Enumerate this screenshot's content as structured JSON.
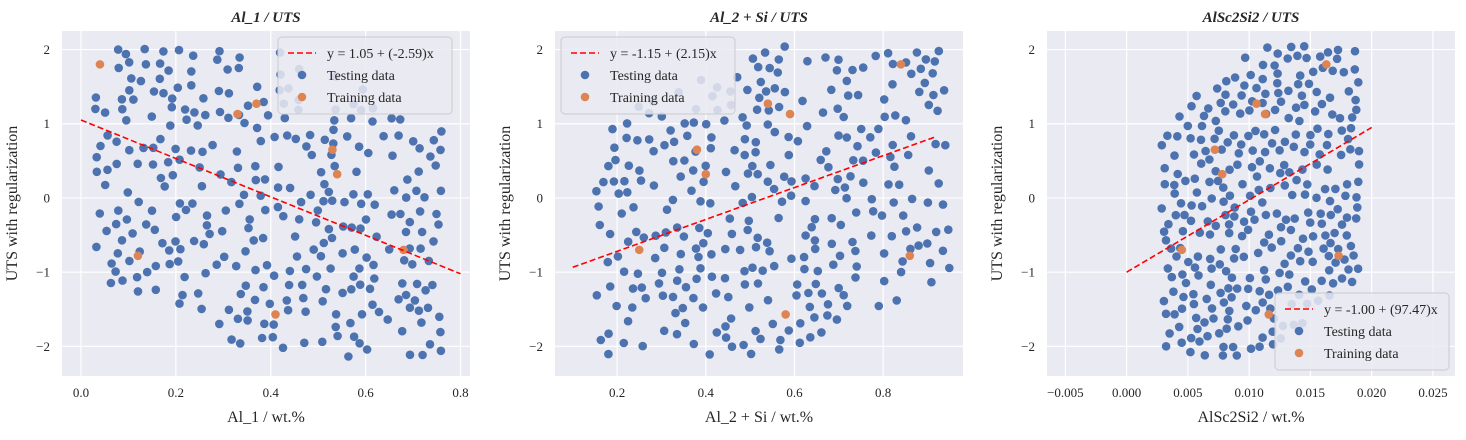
{
  "chart_data": [
    {
      "type": "scatter",
      "title": "Al_1 / UTS",
      "xlabel": "Al_1 / wt.%",
      "ylabel": "UTS with regularization",
      "xlim": [
        -0.04,
        0.82
      ],
      "ylim": [
        -2.4,
        2.25
      ],
      "xticks": [
        "0.0",
        "0.2",
        "0.4",
        "0.6",
        "0.8"
      ],
      "xtick_values": [
        0.0,
        0.2,
        0.4,
        0.6,
        0.8
      ],
      "yticks": [
        "−2",
        "−1",
        "0",
        "1",
        "2"
      ],
      "ytick_values": [
        -2,
        -1,
        0,
        1,
        2
      ],
      "grid": true,
      "legend_position": "top-right",
      "colors": {
        "testing": "#4c72b0",
        "training": "#dd8452",
        "fit": "#ff0000",
        "background": "#eaeaf2"
      },
      "fit_line": {
        "label": "y = 1.05 + (-2.59)x",
        "intercept": 1.05,
        "slope": -2.59,
        "x_range": [
          0.0,
          0.8
        ]
      },
      "series": [
        {
          "name": "Testing data",
          "x_range": [
            0.03,
            0.76
          ],
          "y_range": [
            -2.15,
            2.05
          ],
          "trend": -1.9,
          "approximate_count": 320
        },
        {
          "name": "Training data",
          "x": [
            0.04,
            0.12,
            0.33,
            0.37,
            0.41,
            0.53,
            0.54,
            0.68
          ],
          "y": [
            1.8,
            -0.78,
            1.13,
            1.27,
            -1.57,
            0.65,
            0.32,
            -0.7
          ]
        }
      ],
      "legend": [
        "y = 1.05 + (-2.59)x",
        "Testing data",
        "Training data"
      ]
    },
    {
      "type": "scatter",
      "title": "Al_2 + Si / UTS",
      "xlabel": "Al_2 + Si / wt.%",
      "ylabel": "UTS with regularization",
      "xlim": [
        0.06,
        0.98
      ],
      "ylim": [
        -2.4,
        2.25
      ],
      "xticks": [
        "0.2",
        "0.4",
        "0.6",
        "0.8"
      ],
      "xtick_values": [
        0.2,
        0.4,
        0.6,
        0.8
      ],
      "yticks": [
        "−2",
        "−1",
        "0",
        "1",
        "2"
      ],
      "ytick_values": [
        -2,
        -1,
        0,
        1,
        2
      ],
      "grid": true,
      "legend_position": "top-left",
      "colors": {
        "testing": "#4c72b0",
        "training": "#dd8452",
        "fit": "#ff0000",
        "background": "#eaeaf2"
      },
      "fit_line": {
        "label": "y = -1.15 + (2.15)x",
        "intercept": -1.15,
        "slope": 2.15,
        "x_range": [
          0.1,
          0.92
        ]
      },
      "series": [
        {
          "name": "Testing data",
          "x_range": [
            0.15,
            0.95
          ],
          "y_range": [
            -2.15,
            2.05
          ],
          "trend": 1.9,
          "approximate_count": 320
        },
        {
          "name": "Training data",
          "x": [
            0.25,
            0.38,
            0.4,
            0.54,
            0.58,
            0.59,
            0.84,
            0.86
          ],
          "y": [
            -0.7,
            0.65,
            0.32,
            1.27,
            -1.57,
            1.13,
            1.8,
            -0.78
          ]
        }
      ],
      "legend": [
        "y = -1.15 + (2.15)x",
        "Testing data",
        "Training data"
      ]
    },
    {
      "type": "scatter",
      "title": "AlSc2Si2 / UTS",
      "xlabel": "AlSc2Si2 / wt.%",
      "ylabel": "UTS with regularization",
      "xlim": [
        -0.0065,
        0.0268
      ],
      "ylim": [
        -2.4,
        2.25
      ],
      "xticks": [
        "−0.005",
        "0.000",
        "0.005",
        "0.010",
        "0.015",
        "0.020",
        "0.025"
      ],
      "xtick_values": [
        -0.005,
        0.0,
        0.005,
        0.01,
        0.015,
        0.02,
        0.025
      ],
      "yticks": [
        "−2",
        "−1",
        "0",
        "1",
        "2"
      ],
      "ytick_values": [
        -2,
        -1,
        0,
        1,
        2
      ],
      "grid": true,
      "legend_position": "bottom-right",
      "colors": {
        "testing": "#4c72b0",
        "training": "#dd8452",
        "fit": "#ff0000",
        "background": "#eaeaf2"
      },
      "fit_line": {
        "label": "y = -1.00 + (97.47)x",
        "intercept": -1.0,
        "slope": 97.47,
        "x_range": [
          0.0,
          0.02
        ]
      },
      "series": [
        {
          "name": "Testing data",
          "x_range": [
            0.0028,
            0.019
          ],
          "y_range": [
            -2.15,
            2.05
          ],
          "trend": 150,
          "approximate_count": 320
        },
        {
          "name": "Training data",
          "x": [
            0.0045,
            0.0072,
            0.0078,
            0.0106,
            0.0113,
            0.0116,
            0.0163,
            0.0173
          ],
          "y": [
            -0.7,
            0.65,
            0.32,
            1.27,
            1.13,
            -1.57,
            1.8,
            -0.78
          ]
        }
      ],
      "legend": [
        "y = -1.00 + (97.47)x",
        "Testing data",
        "Training data"
      ]
    }
  ]
}
